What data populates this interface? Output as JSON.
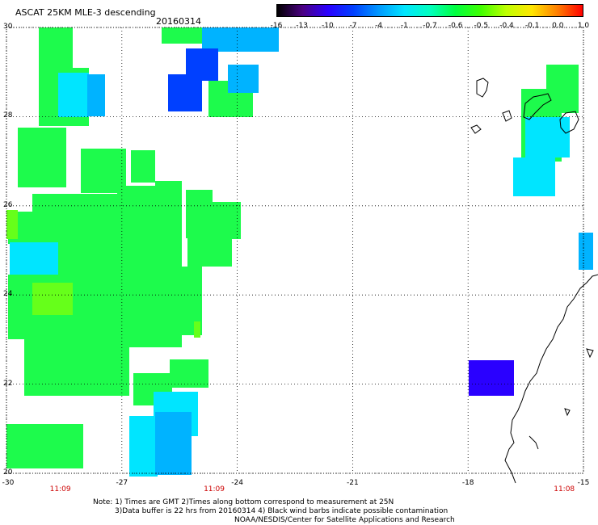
{
  "header": {
    "title": "ASCAT 25KM MLE-3 descending",
    "date": "20160314"
  },
  "colorbar": {
    "labels": [
      "-16",
      "-13",
      "-10",
      "-7",
      "-4",
      "-1",
      "-0.7",
      "-0.6",
      "-0.5",
      "-0.4",
      "-0.1",
      "0.0",
      "1.0"
    ],
    "colors": [
      "#000000",
      "#4b0082",
      "#2a00ff",
      "#0040ff",
      "#0099ff",
      "#00e5ff",
      "#00ffbf",
      "#00ff40",
      "#40ff00",
      "#bfff00",
      "#ffe600",
      "#ff7f00",
      "#ff0000"
    ]
  },
  "axes": {
    "lat_labels": [
      "30",
      "28",
      "26",
      "24",
      "22",
      "20"
    ],
    "lon_labels": [
      "-30",
      "-27",
      "-24",
      "-21",
      "-18",
      "-15"
    ],
    "time_labels": [
      {
        "text": "11:09",
        "lon": -28.6
      },
      {
        "text": "11:09",
        "lon": -24.6
      },
      {
        "text": "11:08",
        "lon": -15.5
      }
    ]
  },
  "notes": {
    "line1": "Note: 1) Times are GMT 2)Times along bottom correspond to measurement at 25N",
    "line2": "3)Data buffer is 22 hrs from 20160314 4) Black wind barbs indicate possible contamination",
    "line3": "NOAA/NESDIS/Center for Satellite Applications and Research"
  },
  "palette": {
    "green": "#1dfb4c",
    "green_dark": "#10f030",
    "green_yellow": "#66ff1a",
    "cyan": "#00e5ff",
    "sky": "#00b3ff",
    "blue": "#0040ff",
    "indigo": "#2a00ff"
  }
}
